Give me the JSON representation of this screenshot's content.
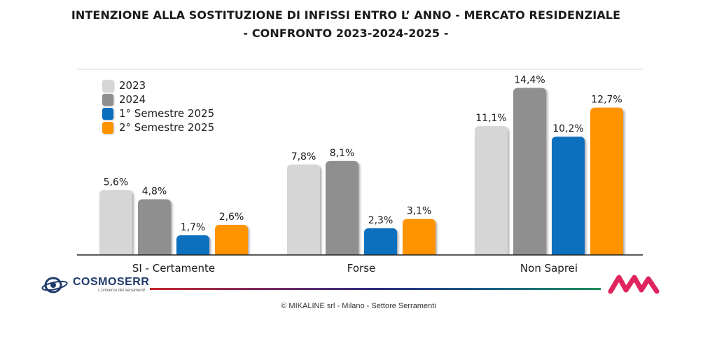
{
  "title_line1": "INTENZIONE ALLA SOSTITUZIONE DI INFISSI ENTRO L’ ANNO - MERCATO RESIDENZIALE",
  "title_line2": "- CONFRONTO 2023-2024-2025 -",
  "chart_data": {
    "type": "bar",
    "categories": [
      "SI - Certamente",
      "Forse",
      "Non Saprei"
    ],
    "series": [
      {
        "name": "2023",
        "color": "#d6d6d6",
        "values": [
          5.6,
          7.8,
          11.1
        ],
        "labels": [
          "5,6%",
          "7,8%",
          "11,1%"
        ]
      },
      {
        "name": "2024",
        "color": "#8f8f8f",
        "values": [
          4.8,
          8.1,
          14.4
        ],
        "labels": [
          "4,8%",
          "8,1%",
          "14,4%"
        ]
      },
      {
        "name": "1° Semestre 2025",
        "color": "#0a6fbf",
        "values": [
          1.7,
          2.3,
          10.2
        ],
        "labels": [
          "1,7%",
          "2,3%",
          "10,2%"
        ]
      },
      {
        "name": "2° Semestre 2025",
        "color": "#ff9300",
        "values": [
          2.6,
          3.1,
          12.7
        ],
        "labels": [
          "2,6%",
          "3,1%",
          "12,7%"
        ]
      }
    ],
    "ylim": [
      0,
      16
    ],
    "legend_position": "top-left"
  },
  "logo_left": {
    "name": "COSMOSERR",
    "tagline": "L'universo dei serramenti"
  },
  "footer": "© MIKALINE srl -  Milano - Settore Serramenti"
}
